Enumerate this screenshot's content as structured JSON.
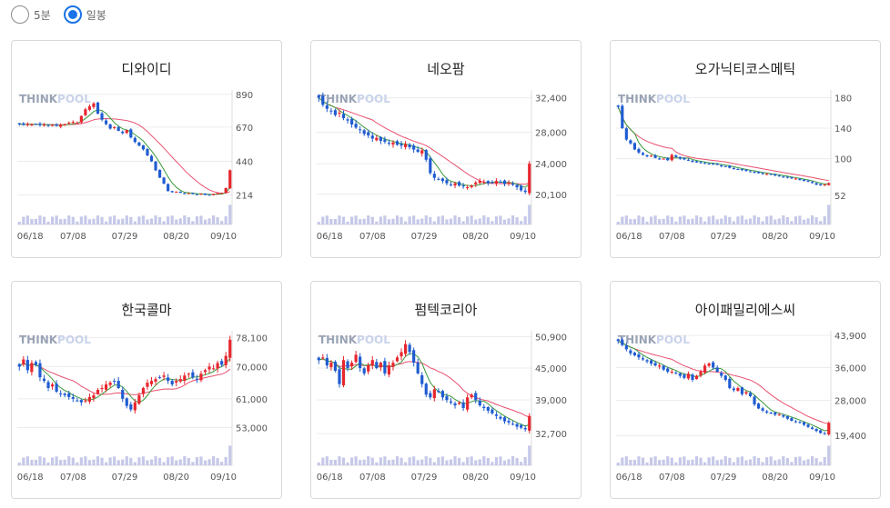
{
  "period_options": [
    {
      "label": "5분",
      "selected": false
    },
    {
      "label": "일봉",
      "selected": true
    }
  ],
  "watermark": {
    "think": "THINK",
    "pool": "POOL"
  },
  "colors": {
    "up": "#e8262e",
    "down": "#1f5cd1",
    "ma_short": "#3a9a3a",
    "ma_long": "#e8506f",
    "volume": "#c5c8e8",
    "grid": "#ececec"
  },
  "chart_data": [
    {
      "type": "candlestick",
      "title": "디와이디",
      "x_ticks": [
        "06/18",
        "07/08",
        "07/29",
        "08/20",
        "09/10"
      ],
      "y_ticks": [
        "890",
        "670",
        "440",
        "214"
      ],
      "ylim": [
        150,
        920
      ],
      "closes": [
        690,
        685,
        692,
        688,
        690,
        684,
        688,
        680,
        685,
        678,
        686,
        690,
        700,
        705,
        700,
        745,
        790,
        810,
        830,
        760,
        720,
        690,
        660,
        670,
        645,
        630,
        650,
        600,
        570,
        545,
        520,
        480,
        440,
        380,
        330,
        290,
        240,
        232,
        236,
        228,
        222,
        226,
        220,
        218,
        222,
        215,
        214,
        220,
        226,
        228,
        260,
        380
      ],
      "last_up_count": 2
    },
    {
      "type": "candlestick",
      "title": "네오팜",
      "x_ticks": [
        "06/18",
        "07/08",
        "07/29",
        "08/20",
        "09/10"
      ],
      "y_ticks": [
        "32,400",
        "28,000",
        "24,000",
        "20,100"
      ],
      "ylim": [
        18800,
        33400
      ],
      "closes": [
        32400,
        31500,
        31000,
        30700,
        30200,
        30500,
        29800,
        29500,
        29000,
        28600,
        28300,
        27800,
        27600,
        27200,
        27300,
        26900,
        26800,
        26600,
        26700,
        26400,
        26300,
        26500,
        26100,
        25800,
        25500,
        25700,
        24500,
        22800,
        22200,
        22000,
        21800,
        21500,
        21300,
        21500,
        21200,
        21100,
        21000,
        21200,
        21600,
        21800,
        21700,
        21500,
        21600,
        21800,
        21700,
        21400,
        21600,
        21300,
        21000,
        20600,
        20400,
        24000
      ],
      "last_up_count": 1
    },
    {
      "type": "candlestick",
      "title": "오가닉티코스메틱",
      "x_ticks": [
        "06/18",
        "07/08",
        "07/29",
        "08/20",
        "09/10"
      ],
      "y_ticks": [
        "180",
        "140",
        "100",
        "52"
      ],
      "ylim": [
        40,
        190
      ],
      "closes": [
        168,
        140,
        125,
        120,
        112,
        108,
        105,
        103,
        104,
        101,
        100,
        100,
        98,
        105,
        102,
        100,
        99,
        98,
        96,
        95,
        95,
        94,
        93,
        93,
        92,
        90,
        90,
        88,
        87,
        86,
        85,
        84,
        83,
        82,
        81,
        80,
        80,
        79,
        78,
        77,
        76,
        75,
        74,
        74,
        72,
        71,
        70,
        68,
        66,
        65,
        66,
        68
      ],
      "last_up_count": 1
    },
    {
      "type": "candlestick",
      "title": "한국콜마",
      "x_ticks": [
        "06/18",
        "07/08",
        "07/29",
        "08/20",
        "09/10"
      ],
      "y_ticks": [
        "78,100",
        "70,000",
        "61,000",
        "53,000"
      ],
      "ylim": [
        48000,
        80000
      ],
      "closes": [
        70000,
        72000,
        69000,
        71000,
        70500,
        67000,
        66000,
        64000,
        65000,
        63000,
        62500,
        62000,
        61500,
        61000,
        60500,
        60000,
        60500,
        61500,
        62000,
        63500,
        64000,
        65000,
        65500,
        66000,
        64000,
        61000,
        59000,
        58000,
        60000,
        62000,
        64000,
        65500,
        66000,
        66500,
        67000,
        67500,
        66000,
        65000,
        66000,
        66500,
        67500,
        68000,
        67000,
        66500,
        68000,
        69000,
        70000,
        69500,
        71000,
        70500,
        73000,
        77500
      ],
      "last_up_count": 1
    },
    {
      "type": "candlestick",
      "title": "펌텍코리아",
      "x_ticks": [
        "06/18",
        "07/08",
        "07/29",
        "08/20",
        "09/10"
      ],
      "y_ticks": [
        "50,900",
        "45,000",
        "39,000",
        "32,700"
      ],
      "ylim": [
        30500,
        52000
      ],
      "closes": [
        46500,
        47000,
        45500,
        46000,
        44500,
        42000,
        46500,
        45000,
        46000,
        47500,
        45000,
        44000,
        45500,
        46500,
        45000,
        46000,
        44000,
        45500,
        46000,
        47000,
        48000,
        49500,
        48000,
        46000,
        44000,
        42000,
        40000,
        39500,
        41000,
        40500,
        39500,
        39000,
        38500,
        38000,
        38500,
        37500,
        39500,
        40000,
        39000,
        38000,
        37500,
        37000,
        36500,
        36000,
        35500,
        35000,
        34800,
        34500,
        34000,
        33800,
        33500,
        36000
      ],
      "last_up_count": 1
    },
    {
      "type": "candlestick",
      "title": "아이패밀리에스씨",
      "x_ticks": [
        "06/18",
        "07/08",
        "07/29",
        "08/20",
        "09/10"
      ],
      "y_ticks": [
        "43,900",
        "36,000",
        "28,000",
        "19,400"
      ],
      "ylim": [
        17000,
        45000
      ],
      "closes": [
        42500,
        41500,
        40500,
        39500,
        39000,
        38500,
        38000,
        37500,
        37000,
        36500,
        36500,
        35500,
        35000,
        35000,
        34500,
        34000,
        33500,
        34500,
        33000,
        34000,
        35000,
        36500,
        37000,
        36000,
        35000,
        34000,
        33000,
        31000,
        30500,
        31000,
        29500,
        30000,
        29000,
        27000,
        26000,
        25500,
        25000,
        24800,
        24500,
        24500,
        24000,
        23500,
        23000,
        22800,
        22500,
        22000,
        21500,
        21000,
        20500,
        20000,
        19800,
        22500
      ],
      "last_up_count": 1
    }
  ]
}
